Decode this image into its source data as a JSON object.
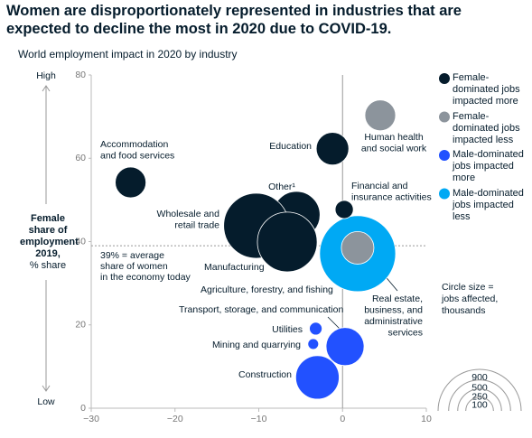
{
  "chart_data": {
    "type": "bubble",
    "title": "Women are disproportionately represented in industries that are expected to decline the most in 2020 due to COVID-19.",
    "subtitle": "World employment impact in 2020 by industry",
    "ylabel": "Female share of employment 2019,",
    "ylabel_unit": "% share",
    "y_high_label": "High",
    "y_low_label": "Low",
    "xlim": [
      -30,
      10
    ],
    "ylim": [
      0,
      80
    ],
    "xticks": [
      {
        "value": -30,
        "label": "−30"
      },
      {
        "value": -20,
        "label": "−20"
      },
      {
        "value": -10,
        "label": "−10"
      },
      0,
      10
    ],
    "yticks": [
      0,
      20,
      40,
      60,
      80
    ],
    "reference_y": 39,
    "reference_label": [
      "39% = average",
      "share of women",
      "in the economy today"
    ],
    "size_legend_title": [
      "Circle size =",
      "jobs affected,",
      "thousands"
    ],
    "size_legend": [
      900,
      500,
      250,
      100
    ],
    "series": [
      {
        "name": "Female-dominated jobs impacted more",
        "color": "#051c2c",
        "x": [
          -25.3,
          -1.2,
          0.2,
          -5.5,
          -10.3,
          -6.6
        ],
        "y": [
          54.2,
          62.3,
          47.7,
          46.4,
          43.8,
          39.9
        ],
        "size": [
          123,
          138,
          43,
          289,
          553,
          465
        ],
        "labels": [
          [
            "Accommodation",
            "and food services"
          ],
          [
            "Education"
          ],
          [
            "Financial and",
            "insurance activities"
          ],
          [
            "Other¹"
          ],
          [
            "Wholesale and",
            "retail trade"
          ],
          [
            "Manufacturing"
          ]
        ]
      },
      {
        "name": "Female-dominated jobs impacted less",
        "color": "#8c949c",
        "x": [
          4.5,
          1.8
        ],
        "y": [
          70.3,
          38.5
        ],
        "size": [
          123,
          138
        ],
        "labels": [
          [
            "Human health",
            "and social work"
          ],
          [
            "Real estate,",
            "business, and",
            "administrative",
            "services"
          ]
        ]
      },
      {
        "name": "Male-dominated jobs impacted more",
        "color": "#2251ff",
        "x": [
          -3.2,
          -3.5,
          0.3,
          -3.0
        ],
        "y": [
          19.1,
          15.4,
          14.8,
          7.4
        ],
        "size": [
          21,
          15,
          188,
          246
        ],
        "labels": [
          [
            "Utilities"
          ],
          [
            "Mining and quarrying"
          ],
          [
            "Transport, storage, and communication"
          ],
          [
            "Construction"
          ]
        ]
      },
      {
        "name": "Male-dominated jobs impacted less",
        "color": "#00a9f4",
        "x": [
          1.8
        ],
        "y": [
          37.1
        ],
        "size": [
          753
        ],
        "labels": [
          [
            "Agriculture, forestry, and fishing"
          ]
        ]
      }
    ]
  }
}
